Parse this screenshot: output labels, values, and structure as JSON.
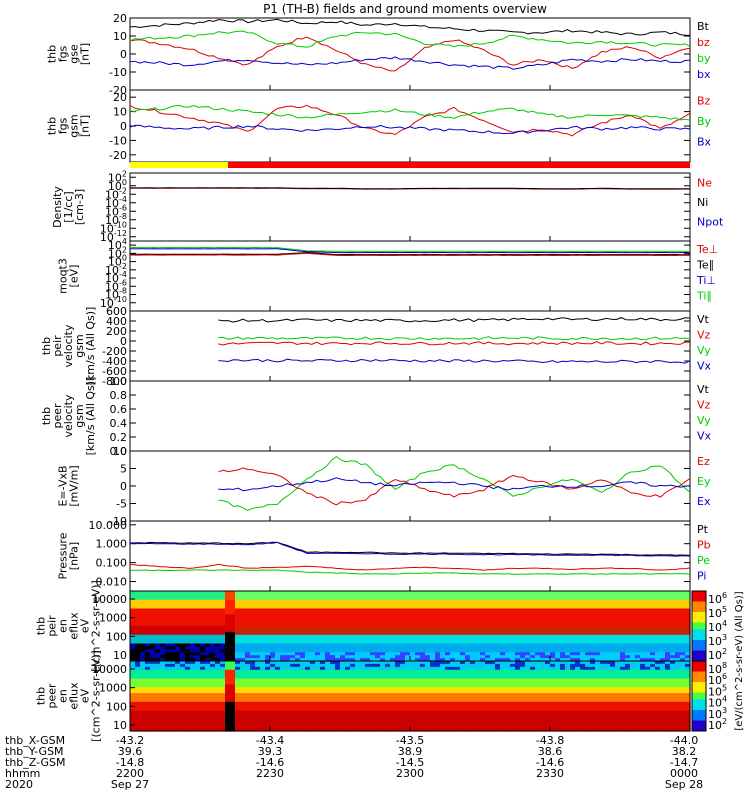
{
  "title": "P1 (TH-B) fields and ground moments overview",
  "chart_data": [
    {
      "type": "line",
      "ylabel": [
        "thb",
        "fgs",
        "gse",
        "[nT]"
      ],
      "ylim": [
        -20,
        20
      ],
      "ticks": [
        20,
        10,
        0,
        -10,
        -20
      ],
      "legend": [
        {
          "name": "Bt",
          "color": "#000000"
        },
        {
          "name": "bz",
          "color": "#e00000"
        },
        {
          "name": "by",
          "color": "#00cc00"
        },
        {
          "name": "bx",
          "color": "#0000cc"
        }
      ],
      "series": [
        {
          "name": "Bt",
          "color": "#000000",
          "values": [
            15,
            16,
            17,
            19,
            18,
            19,
            17,
            18,
            16,
            17,
            15,
            14,
            13,
            12,
            12,
            13,
            12,
            11,
            12,
            11
          ]
        },
        {
          "name": "bz",
          "color": "#e00000",
          "values": [
            8,
            6,
            3,
            -2,
            -6,
            4,
            10,
            2,
            -6,
            -10,
            3,
            8,
            2,
            -6,
            -3,
            -8,
            1,
            4,
            -2,
            4
          ]
        },
        {
          "name": "by",
          "color": "#00cc00",
          "values": [
            8,
            9,
            10,
            12,
            12,
            6,
            4,
            10,
            12,
            11,
            6,
            4,
            6,
            10,
            8,
            6,
            7,
            6,
            5,
            5
          ]
        },
        {
          "name": "bx",
          "color": "#0000cc",
          "values": [
            -4,
            -5,
            -6,
            -4,
            -3,
            -5,
            -6,
            -5,
            -3,
            -2,
            -4,
            -6,
            -7,
            -8,
            -6,
            -3,
            -4,
            -3,
            -4,
            -4
          ]
        }
      ]
    },
    {
      "type": "line",
      "ylabel": [
        "thb",
        "fgs",
        "gsm",
        "[nT]"
      ],
      "ylim": [
        -25,
        25
      ],
      "ticks": [
        20,
        10,
        0,
        -10,
        -20
      ],
      "legend": [
        {
          "name": "Bz",
          "color": "#e00000"
        },
        {
          "name": "By",
          "color": "#00cc00"
        },
        {
          "name": "Bx",
          "color": "#0000cc"
        }
      ],
      "series": [
        {
          "name": "Bz",
          "color": "#e00000",
          "values": [
            14,
            10,
            6,
            2,
            -4,
            12,
            14,
            8,
            -2,
            -6,
            6,
            12,
            4,
            -4,
            -2,
            -6,
            2,
            8,
            -2,
            8
          ]
        },
        {
          "name": "By",
          "color": "#00cc00",
          "values": [
            10,
            12,
            14,
            12,
            10,
            8,
            6,
            8,
            10,
            11,
            8,
            6,
            10,
            12,
            8,
            6,
            8,
            7,
            6,
            4
          ]
        },
        {
          "name": "Bx",
          "color": "#0000cc",
          "values": [
            0,
            -1,
            -2,
            -1,
            0,
            -2,
            -3,
            -2,
            0,
            -1,
            -2,
            -3,
            -4,
            -5,
            -3,
            -1,
            -2,
            -1,
            -2,
            -2
          ]
        }
      ]
    },
    {
      "type": "line",
      "ylabel": [
        "Density",
        "[1/cc]",
        "[cm-3]"
      ],
      "log": true,
      "ylim": [
        -13,
        3
      ],
      "ticks": [
        "10^2",
        "10^0",
        "10^-2",
        "10^-4",
        "10^-6",
        "10^-8",
        "10^-10",
        "10^-12"
      ],
      "legend": [
        {
          "name": "Ne",
          "color": "#e00000"
        },
        {
          "name": "Ni",
          "color": "#000000"
        },
        {
          "name": "Npot",
          "color": "#0000cc"
        }
      ],
      "series": [
        {
          "name": "Ne",
          "color": "#e00000",
          "values": [
            -0.6,
            -0.6,
            -0.6,
            -0.6,
            -0.6,
            -0.6,
            -0.7,
            -0.7,
            -0.8,
            -0.8,
            -0.7,
            -0.7,
            -0.7,
            -0.7,
            -0.8,
            -0.8,
            -0.7,
            -0.8,
            -0.8,
            -0.8
          ]
        },
        {
          "name": "Ni",
          "color": "#000000",
          "values": [
            -0.5,
            -0.5,
            -0.5,
            -0.5,
            -0.5,
            -0.5,
            -0.6,
            -0.6,
            -0.7,
            -0.7,
            -0.6,
            -0.6,
            -0.6,
            -0.6,
            -0.7,
            -0.7,
            -0.6,
            -0.7,
            -0.7,
            -0.7
          ]
        }
      ]
    },
    {
      "type": "line",
      "ylabel": [
        "moqt3",
        "[eV]"
      ],
      "log": true,
      "ylim": [
        -12,
        5
      ],
      "ticks": [
        "10^4",
        "10^2",
        "10^0",
        "10^-2",
        "10^-4",
        "10^-6",
        "10^-8",
        "10^-10"
      ],
      "legend": [
        {
          "name": "Te⊥",
          "color": "#e00000"
        },
        {
          "name": "Te∥",
          "color": "#000000"
        },
        {
          "name": "Ti⊥",
          "color": "#0000cc"
        },
        {
          "name": "Ti∥",
          "color": "#00cc00"
        }
      ],
      "series": [
        {
          "name": "Ti∥",
          "color": "#00cc00",
          "values": [
            3.4,
            3.4,
            3.4,
            3.4,
            3.4,
            3.4,
            2.6,
            2.5,
            2.5,
            2.5,
            2.5,
            2.5,
            2.5,
            2.5,
            2.5,
            2.5,
            2.5,
            2.5,
            2.5,
            2.5
          ]
        },
        {
          "name": "Ti⊥",
          "color": "#0000cc",
          "values": [
            3.1,
            3.1,
            3.1,
            3.1,
            3.1,
            3.1,
            2.4,
            2.2,
            2.2,
            2.2,
            2.2,
            2.2,
            2.2,
            2.2,
            2.2,
            2.2,
            2.2,
            2.2,
            2.2,
            2.2
          ]
        },
        {
          "name": "Te∥",
          "color": "#000000",
          "values": [
            1.8,
            1.8,
            1.8,
            1.8,
            1.8,
            1.8,
            2.2,
            1.7,
            1.7,
            1.7,
            1.7,
            1.7,
            1.7,
            1.7,
            1.7,
            1.7,
            1.7,
            1.7,
            1.7,
            1.7
          ]
        },
        {
          "name": "Te⊥",
          "color": "#e00000",
          "values": [
            1.6,
            1.6,
            1.6,
            1.6,
            1.6,
            1.6,
            2.0,
            1.5,
            1.5,
            1.5,
            1.5,
            1.5,
            1.5,
            1.5,
            1.5,
            1.5,
            1.5,
            1.5,
            1.5,
            1.5
          ]
        }
      ]
    },
    {
      "type": "line",
      "ylabel": [
        "thb",
        "peir",
        "velocity",
        "gsm",
        "[km/s (All Qs)]"
      ],
      "ylim": [
        -800,
        600
      ],
      "ticks": [
        600,
        400,
        200,
        0,
        -200,
        -400,
        -600,
        -800
      ],
      "legend": [
        {
          "name": "Vt",
          "color": "#000000"
        },
        {
          "name": "Vz",
          "color": "#e00000"
        },
        {
          "name": "Vy",
          "color": "#00cc00"
        },
        {
          "name": "Vx",
          "color": "#0000cc"
        }
      ],
      "x_start": 3,
      "series": [
        {
          "name": "Vt",
          "color": "#000000",
          "values": [
            null,
            null,
            null,
            400,
            410,
            405,
            420,
            410,
            415,
            405,
            410,
            420,
            415,
            430,
            450,
            430,
            440,
            445,
            430,
            450
          ]
        },
        {
          "name": "Vy",
          "color": "#00cc00",
          "values": [
            null,
            null,
            null,
            50,
            60,
            55,
            50,
            55,
            60,
            50,
            55,
            50,
            55,
            60,
            55,
            50,
            55,
            50,
            55,
            50
          ]
        },
        {
          "name": "Vz",
          "color": "#e00000",
          "values": [
            null,
            null,
            null,
            -60,
            -50,
            -40,
            -45,
            -50,
            -40,
            -45,
            -50,
            -40,
            -45,
            -50,
            -40,
            -45,
            -40,
            -50,
            -45,
            -40
          ]
        },
        {
          "name": "Vx",
          "color": "#0000cc",
          "values": [
            null,
            null,
            null,
            -380,
            -385,
            -390,
            -395,
            -390,
            -385,
            -390,
            -395,
            -400,
            -395,
            -405,
            -420,
            -410,
            -415,
            -410,
            -405,
            -420
          ]
        }
      ]
    },
    {
      "type": "line",
      "ylabel": [
        "thb",
        "peer",
        "velocity",
        "gsm",
        "[km/s (All Qs)]"
      ],
      "ylim": [
        0,
        1
      ],
      "ticks": [
        "1.0",
        "0.8",
        "0.6",
        "0.4",
        "0.2",
        "0.0"
      ],
      "legend": [
        {
          "name": "Vt",
          "color": "#000000"
        },
        {
          "name": "Vz",
          "color": "#e00000"
        },
        {
          "name": "Vy",
          "color": "#00cc00"
        },
        {
          "name": "Vx",
          "color": "#0000cc"
        }
      ],
      "series": []
    },
    {
      "type": "line",
      "ylabel": [
        "E=-VxB",
        "[mV/m]"
      ],
      "ylim": [
        -10,
        10
      ],
      "ticks": [
        10,
        5,
        0,
        -5,
        -10
      ],
      "legend": [
        {
          "name": "Ez",
          "color": "#e00000"
        },
        {
          "name": "Ey",
          "color": "#00cc00"
        },
        {
          "name": "Ex",
          "color": "#0000cc"
        }
      ],
      "x_start": 3,
      "series": [
        {
          "name": "Ey",
          "color": "#00cc00",
          "values": [
            null,
            null,
            null,
            -4,
            -7,
            -5,
            2,
            8,
            6,
            -1,
            4,
            6,
            2,
            -3,
            0,
            2,
            -2,
            4,
            6,
            -2
          ]
        },
        {
          "name": "Ez",
          "color": "#e00000",
          "values": [
            null,
            null,
            null,
            4,
            5,
            3,
            -2,
            -5,
            -4,
            2,
            -1,
            -3,
            -1,
            3,
            1,
            -1,
            2,
            -2,
            -3,
            2
          ]
        },
        {
          "name": "Ex",
          "color": "#0000cc",
          "values": [
            null,
            null,
            null,
            -1,
            -1,
            0,
            1,
            2,
            1,
            0,
            1,
            1,
            0,
            -1,
            0,
            0,
            0,
            1,
            0,
            0
          ]
        }
      ]
    },
    {
      "type": "line",
      "ylabel": [
        "Pressure",
        "[nPa]"
      ],
      "log": true,
      "ylim": [
        -2.5,
        1.2
      ],
      "ticks": [
        "10.000",
        "1.000",
        "0.100",
        "0.010",
        "0.001"
      ],
      "legend": [
        {
          "name": "Pt",
          "color": "#000000"
        },
        {
          "name": "Pb",
          "color": "#e00000"
        },
        {
          "name": "Pe",
          "color": "#00cc00"
        },
        {
          "name": "Pi",
          "color": "#0000cc"
        }
      ],
      "series": [
        {
          "name": "Pt",
          "color": "#000000",
          "values": [
            0.05,
            0.05,
            0.03,
            0.03,
            0.0,
            0.08,
            -0.45,
            -0.45,
            -0.45,
            -0.5,
            -0.5,
            -0.5,
            -0.52,
            -0.52,
            -0.55,
            -0.55,
            -0.55,
            -0.58,
            -0.6,
            -0.6
          ]
        },
        {
          "name": "Pi",
          "color": "#0000cc",
          "values": [
            0.0,
            0.0,
            -0.02,
            -0.02,
            -0.05,
            0.05,
            -0.5,
            -0.52,
            -0.52,
            -0.55,
            -0.55,
            -0.55,
            -0.58,
            -0.58,
            -0.6,
            -0.6,
            -0.6,
            -0.62,
            -0.65,
            -0.65
          ]
        },
        {
          "name": "Pb",
          "color": "#e00000",
          "values": [
            -1.1,
            -1.2,
            -1.3,
            -1.1,
            -1.3,
            -1.25,
            -1.2,
            -1.3,
            -1.4,
            -1.3,
            -1.25,
            -1.3,
            -1.4,
            -1.3,
            -1.3,
            -1.35,
            -1.3,
            -1.3,
            -1.4,
            -1.3
          ]
        },
        {
          "name": "Pe",
          "color": "#00cc00",
          "values": [
            -1.4,
            -1.4,
            -1.4,
            -1.4,
            -1.4,
            -1.4,
            -1.5,
            -1.55,
            -1.6,
            -1.6,
            -1.55,
            -1.55,
            -1.6,
            -1.6,
            -1.6,
            -1.6,
            -1.6,
            -1.6,
            -1.6,
            -1.6
          ]
        }
      ]
    },
    {
      "type": "heatmap",
      "ylabel": [
        "thb",
        "peir",
        "en",
        "eflux",
        "eV",
        "[(cm^2-s-sr-eV)]"
      ],
      "ticks": [
        "10000",
        "1000",
        "100",
        "10"
      ]
    },
    {
      "type": "heatmap",
      "ylabel": [
        "thb",
        "peer",
        "en",
        "eflux",
        "eV",
        "[(cm^2-s-sr-eV)]"
      ],
      "ticks": [
        "10000",
        "1000",
        "100",
        "10"
      ]
    }
  ],
  "colorbar": {
    "label": "[eV/(cm^2-s-sr-eV) (All Qs)]",
    "ticks_top": [
      "10^6",
      "10^5",
      "10^4",
      "10^3",
      "10^2"
    ],
    "ticks_bottom": [
      "10^8",
      "10^6",
      "10^5",
      "10^4",
      "10^3",
      "10^2"
    ]
  },
  "status_bar": {
    "segments": [
      {
        "from": 0,
        "to": 0.175,
        "color": "#ffff00"
      },
      {
        "from": 0.175,
        "to": 1,
        "color": "#ff0000"
      }
    ]
  },
  "x_axis": {
    "tick_fracs": [
      0,
      0.25,
      0.5,
      0.75,
      1
    ],
    "row_labels": [
      "thb_X-GSM",
      "thb_Y-GSM",
      "thb_Z-GSM",
      "hhmm",
      "2020"
    ],
    "columns": [
      [
        "-43.2",
        "39.6",
        "-14.8",
        "2200",
        "Sep 27"
      ],
      [
        "-43.4",
        "39.3",
        "-14.6",
        "2230",
        ""
      ],
      [
        "-43.5",
        "38.9",
        "-14.5",
        "2300",
        ""
      ],
      [
        "-43.8",
        "38.6",
        "-14.6",
        "2330",
        ""
      ],
      [
        "-44.0",
        "38.2",
        "-14.7",
        "0000",
        "Sep 28"
      ]
    ]
  }
}
